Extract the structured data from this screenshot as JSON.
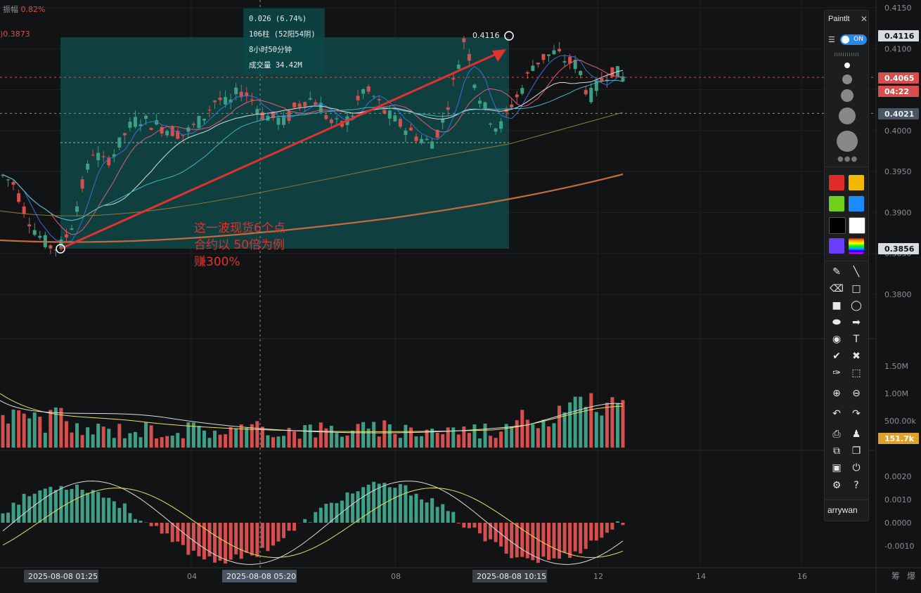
{
  "header": {
    "amplitude_label": "振幅",
    "amplitude_value": "0.82%",
    "ma_value": "0.3873"
  },
  "info_box": {
    "line1": "0.026 (6.74%)",
    "line2": "106柱 (52阳54阴)",
    "line3": "8小时50分钟",
    "line4": "成交量 34.42M"
  },
  "annotation": {
    "line1": "这一波现货6个点",
    "line2": "合约以 50倍为例",
    "line3": "赚300%"
  },
  "peak_label": "0.4116",
  "colors": {
    "background": "#121314",
    "up": "#3f9e86",
    "down": "#d64f4f",
    "annotation": "#e0322e",
    "range_fill": "#0f4f4d",
    "ma_orange": "#c56a3f"
  },
  "panel": {
    "title": "Paintlt",
    "toggle": "ON",
    "username": "arrywan",
    "swatches": [
      "#e02b2b",
      "#f5b800",
      "#6fd11c",
      "#1a8cff",
      "#000000",
      "#ffffff",
      "#6b3dff",
      "rainbow"
    ],
    "tools": [
      "pencil-icon",
      "line-icon",
      "eraser-icon",
      "rect-outline-icon",
      "rect-filled-icon",
      "ellipse-outline-icon",
      "ellipse-filled-icon",
      "arrow-icon",
      "marker-icon",
      "text-icon",
      "check-icon",
      "cross-icon",
      "eyedropper-icon",
      "select-icon",
      "zoom-in-icon",
      "zoom-out-icon",
      "undo-icon",
      "redo-icon",
      "print-icon",
      "stamp-icon",
      "copy-icon",
      "paste-icon",
      "save-icon",
      "power-icon",
      "settings-icon",
      "help-icon"
    ]
  },
  "chart_data": [
    {
      "type": "candlestick",
      "title": "",
      "price_axis_ticks": [
        "0.4150",
        "0.4100",
        "0.4050",
        "0.4000",
        "0.3950",
        "0.3900",
        "0.3850",
        "0.3800"
      ],
      "price_tags": {
        "high": "0.4116",
        "last": "0.4065",
        "countdown": "04:22",
        "crosshair": "0.4021",
        "low": "0.3856"
      },
      "range_measure": {
        "from_price": 0.3856,
        "to_price": 0.4116,
        "change": "0.026 (6.74%)",
        "bars": 106,
        "duration": "8小时50分钟",
        "volume": "34.42M"
      },
      "x_ticks": [
        "04",
        "08",
        "12",
        "14",
        "16"
      ],
      "x_time_labels": [
        "2025-08-08 01:25",
        "2025-08-08 05:20",
        "2025-08-08 10:15"
      ],
      "close_path": [
        0.3945,
        0.3935,
        0.39,
        0.3875,
        0.386,
        0.3856,
        0.388,
        0.393,
        0.3975,
        0.396,
        0.3975,
        0.4,
        0.4015,
        0.401,
        0.4005,
        0.4,
        0.3995,
        0.4005,
        0.402,
        0.404,
        0.403,
        0.405,
        0.404,
        0.402,
        0.4015,
        0.401,
        0.403,
        0.404,
        0.4035,
        0.401,
        0.4005,
        0.402,
        0.405,
        0.404,
        0.402,
        0.401,
        0.4,
        0.399,
        0.3985,
        0.401,
        0.406,
        0.4116,
        0.405,
        0.402,
        0.4,
        0.403,
        0.405,
        0.408,
        0.409,
        0.4095,
        0.4085,
        0.408,
        0.404,
        0.406,
        0.4075,
        0.4065
      ]
    },
    {
      "type": "bar",
      "title": "volume",
      "axis_ticks": [
        "1.50M",
        "1.00M",
        "500.00k"
      ],
      "last_value": "151.7k"
    },
    {
      "type": "bar",
      "title": "MACD",
      "axis_ticks": [
        "0.0020",
        "0.0010",
        "0.0000",
        "-0.0010"
      ]
    }
  ]
}
